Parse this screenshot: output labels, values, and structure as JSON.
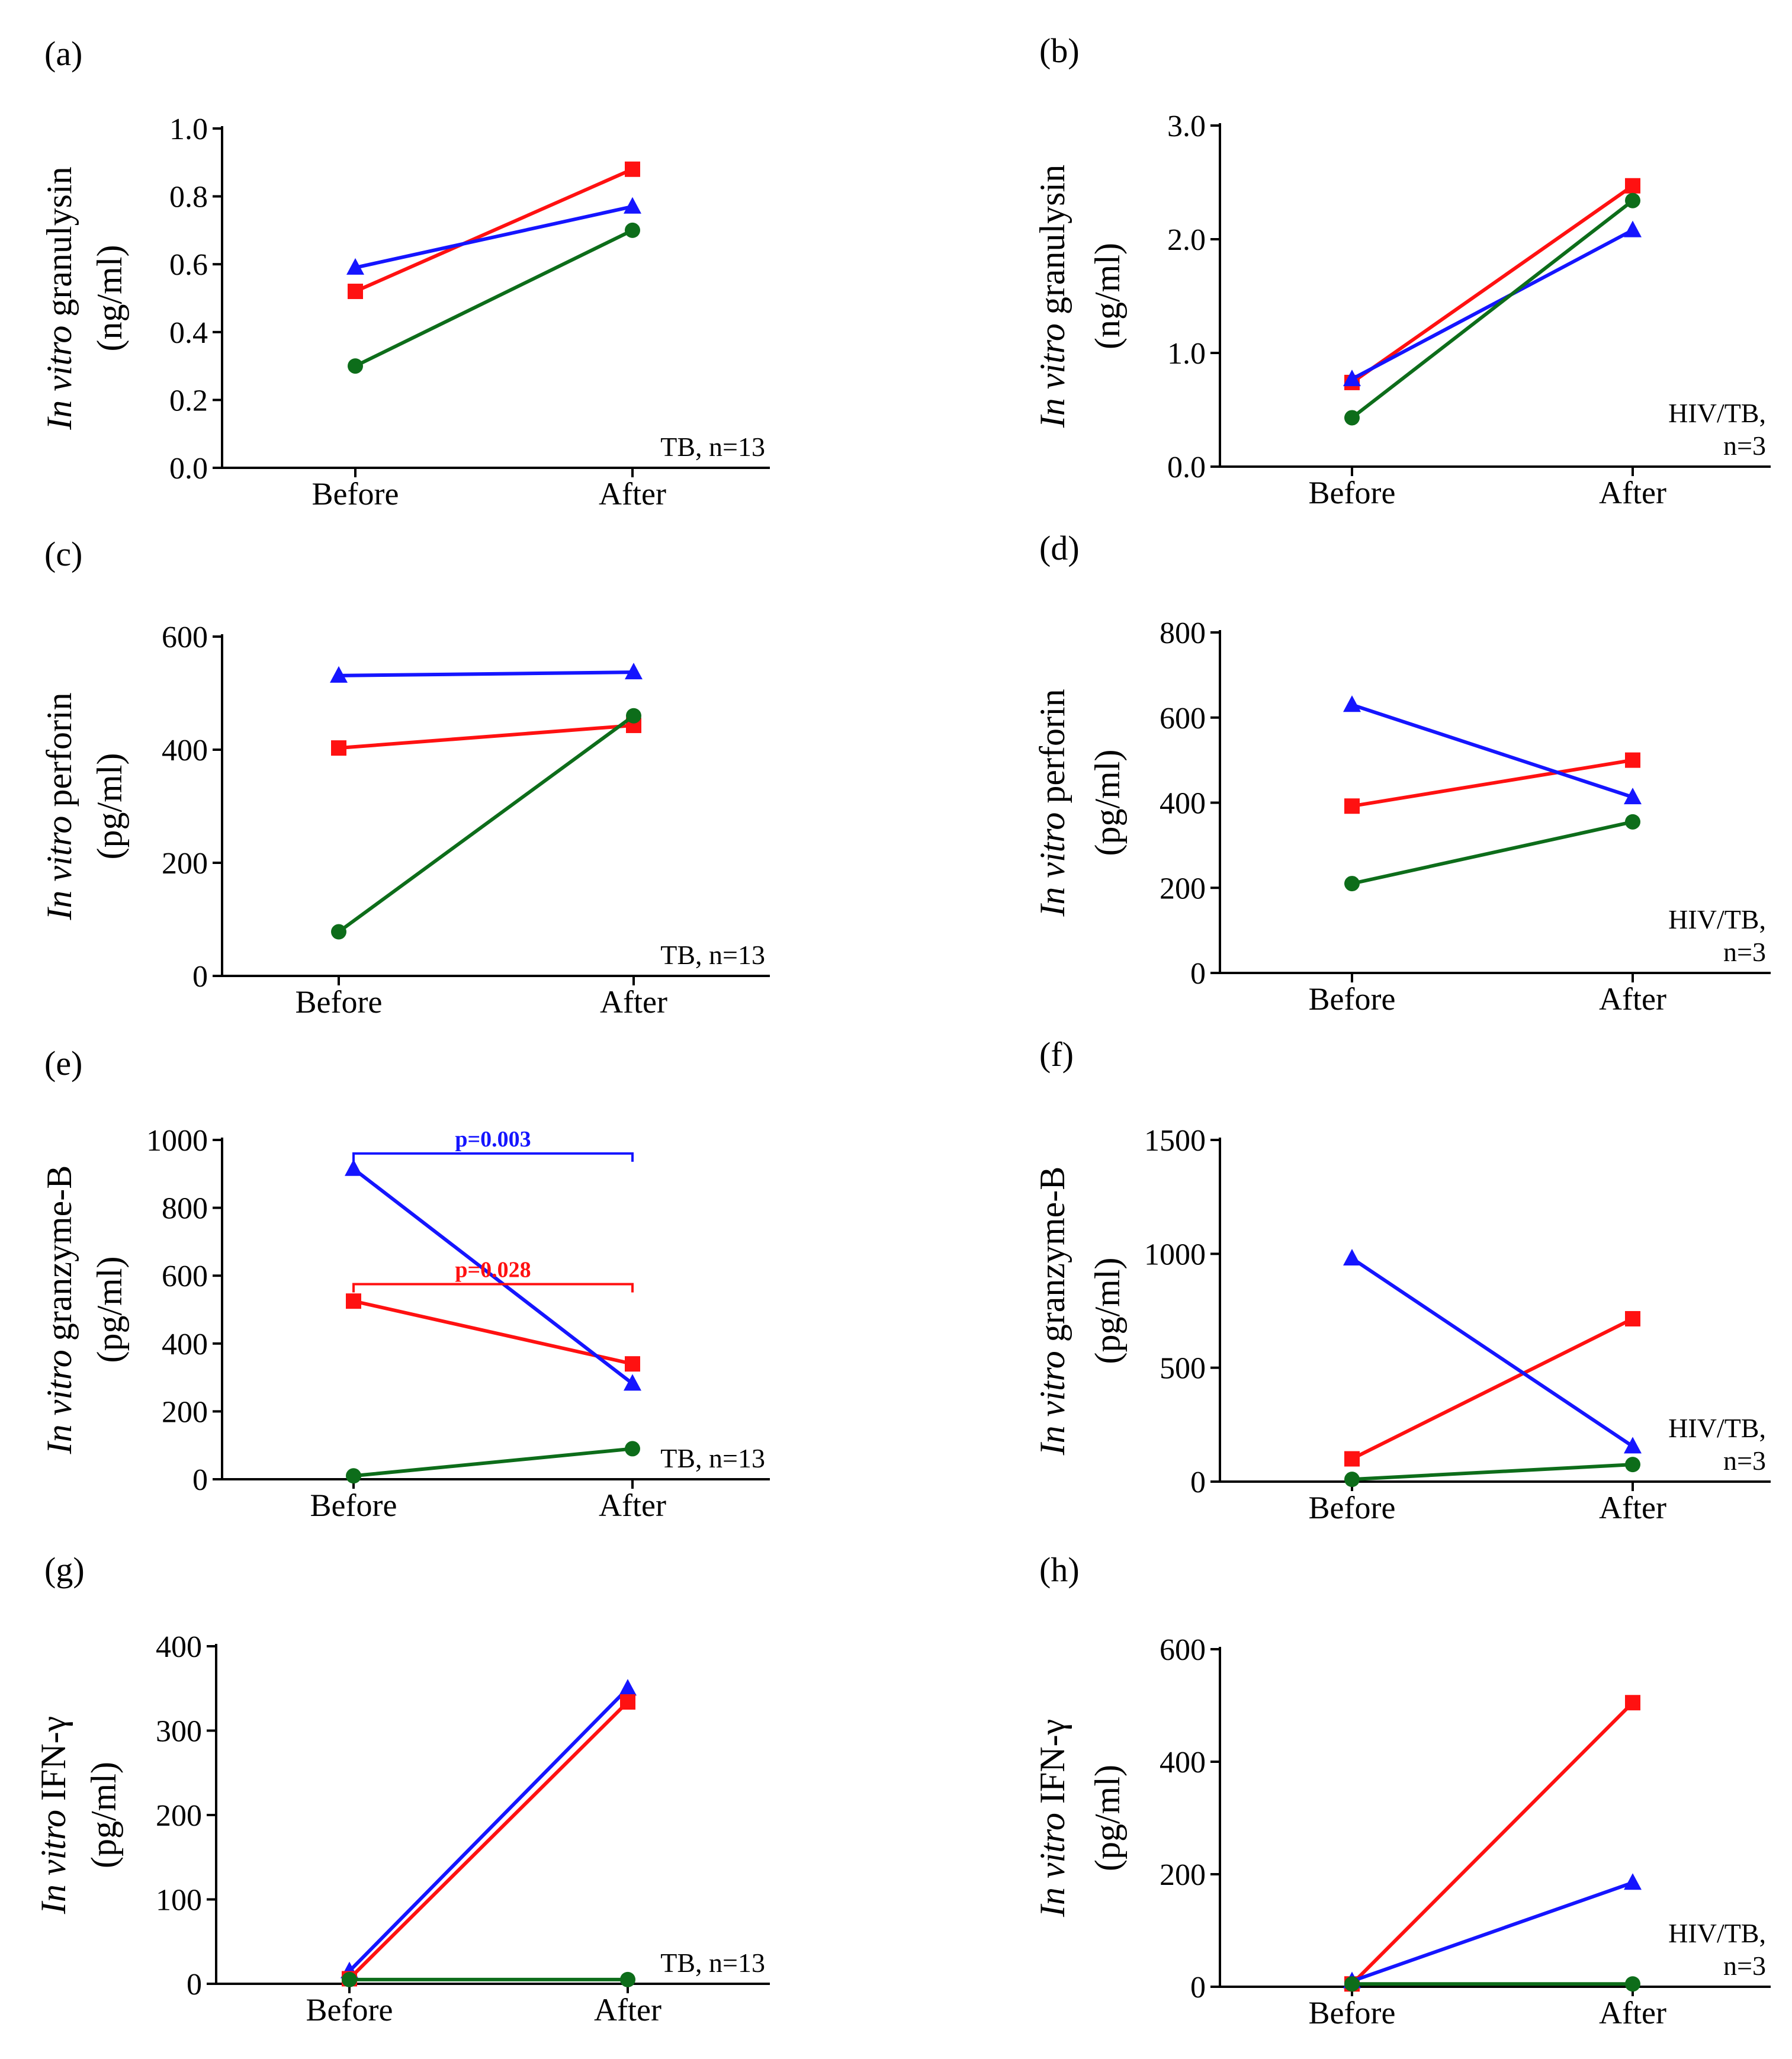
{
  "colors": {
    "red": "#ff1111",
    "blue": "#1515ff",
    "green": "#0d6d1a",
    "axis": "#000000"
  },
  "chart_data": [
    {
      "panel": "(a)",
      "type": "line",
      "ylabel_italic": "In vitro",
      "ylabel_rest": "granulysin",
      "yunit": "(ng/ml)",
      "group_lines": [
        "TB, n=13"
      ],
      "categories": [
        "Before",
        "After"
      ],
      "yticks": [
        0,
        0.2,
        0.4,
        0.6,
        0.8,
        1.0
      ],
      "yticklabels": [
        "0.0",
        "0.2",
        "0.4",
        "0.6",
        "0.8",
        "1.0"
      ],
      "ylim": [
        0,
        1.0
      ],
      "series": [
        {
          "color": "red",
          "marker": "square",
          "values": [
            0.52,
            0.88
          ]
        },
        {
          "color": "blue",
          "marker": "triangle",
          "values": [
            0.59,
            0.77
          ]
        },
        {
          "color": "green",
          "marker": "circle",
          "values": [
            0.3,
            0.7
          ]
        }
      ],
      "brackets": []
    },
    {
      "panel": "(b)",
      "type": "line",
      "ylabel_italic": "In vitro",
      "ylabel_rest": "granulysin",
      "yunit": "(ng/ml)",
      "group_lines": [
        "HIV/TB,",
        "n=3"
      ],
      "categories": [
        "Before",
        "After"
      ],
      "yticks": [
        0,
        1,
        2,
        3
      ],
      "yticklabels": [
        "0.0",
        "1.0",
        "2.0",
        "3.0"
      ],
      "ylim": [
        0,
        3.0
      ],
      "series": [
        {
          "color": "red",
          "marker": "square",
          "values": [
            0.74,
            2.47
          ]
        },
        {
          "color": "blue",
          "marker": "triangle",
          "values": [
            0.77,
            2.08
          ]
        },
        {
          "color": "green",
          "marker": "circle",
          "values": [
            0.43,
            2.34
          ]
        }
      ],
      "brackets": []
    },
    {
      "panel": "(c)",
      "type": "line",
      "ylabel_italic": "In vitro",
      "ylabel_rest": "perforin",
      "yunit": "(pg/ml)",
      "group_lines": [
        "TB, n=13"
      ],
      "categories": [
        "Before",
        "After"
      ],
      "yticks": [
        0,
        200,
        400,
        600
      ],
      "yticklabels": [
        "0",
        "200",
        "400",
        "600"
      ],
      "ylim": [
        0,
        600
      ],
      "series": [
        {
          "color": "red",
          "marker": "square",
          "values": [
            403,
            443
          ]
        },
        {
          "color": "blue",
          "marker": "triangle",
          "values": [
            531,
            537
          ]
        },
        {
          "color": "green",
          "marker": "circle",
          "values": [
            78,
            460
          ]
        }
      ],
      "brackets": []
    },
    {
      "panel": "(d)",
      "type": "line",
      "ylabel_italic": "In vitro",
      "ylabel_rest": "perforin",
      "yunit": "(pg/ml)",
      "group_lines": [
        "HIV/TB,",
        "n=3"
      ],
      "categories": [
        "Before",
        "After"
      ],
      "yticks": [
        0,
        200,
        400,
        600,
        800
      ],
      "yticklabels": [
        "0",
        "200",
        "400",
        "600",
        "800"
      ],
      "ylim": [
        0,
        800
      ],
      "series": [
        {
          "color": "red",
          "marker": "square",
          "values": [
            392,
            500
          ]
        },
        {
          "color": "blue",
          "marker": "triangle",
          "values": [
            630,
            413
          ]
        },
        {
          "color": "green",
          "marker": "circle",
          "values": [
            210,
            355
          ]
        }
      ],
      "brackets": []
    },
    {
      "panel": "(e)",
      "type": "line",
      "ylabel_italic": "In vitro",
      "ylabel_rest": "granzyme-B",
      "yunit": "(pg/ml)",
      "group_lines": [
        "TB, n=13"
      ],
      "categories": [
        "Before",
        "After"
      ],
      "yticks": [
        0,
        200,
        400,
        600,
        800,
        1000
      ],
      "yticklabels": [
        "0",
        "200",
        "400",
        "600",
        "800",
        "1000"
      ],
      "ylim": [
        0,
        1000
      ],
      "series": [
        {
          "color": "red",
          "marker": "square",
          "values": [
            525,
            340
          ]
        },
        {
          "color": "blue",
          "marker": "triangle",
          "values": [
            915,
            282
          ]
        },
        {
          "color": "green",
          "marker": "circle",
          "values": [
            10,
            90
          ]
        }
      ],
      "brackets": [
        {
          "color": "blue",
          "label": "p=0.003",
          "y": 960
        },
        {
          "color": "red",
          "label": "p=0.028",
          "y": 575
        }
      ]
    },
    {
      "panel": "(f)",
      "type": "line",
      "ylabel_italic": "In vitro",
      "ylabel_rest": "granzyme-B",
      "yunit": "(pg/ml)",
      "group_lines": [
        "HIV/TB,",
        "n=3"
      ],
      "categories": [
        "Before",
        "After"
      ],
      "yticks": [
        0,
        500,
        1000,
        1500
      ],
      "yticklabels": [
        "0",
        "500",
        "1000",
        "1500"
      ],
      "ylim": [
        0,
        1500
      ],
      "series": [
        {
          "color": "red",
          "marker": "square",
          "values": [
            100,
            715
          ]
        },
        {
          "color": "blue",
          "marker": "triangle",
          "values": [
            980,
            155
          ]
        },
        {
          "color": "green",
          "marker": "circle",
          "values": [
            10,
            75
          ]
        }
      ],
      "brackets": []
    },
    {
      "panel": "(g)",
      "type": "line",
      "ylabel_italic": "In vitro",
      "ylabel_rest": "IFN-γ",
      "yunit": "(pg/ml)",
      "group_lines": [
        "TB, n=13"
      ],
      "categories": [
        "Before",
        "After"
      ],
      "yticks": [
        0,
        100,
        200,
        300,
        400
      ],
      "yticklabels": [
        "0",
        "100",
        "200",
        "300",
        "400"
      ],
      "ylim": [
        0,
        400
      ],
      "series": [
        {
          "color": "blue",
          "marker": "triangle",
          "values": [
            15,
            350
          ]
        },
        {
          "color": "red",
          "marker": "square",
          "values": [
            6,
            334
          ]
        },
        {
          "color": "green",
          "marker": "circle",
          "values": [
            5,
            5
          ]
        }
      ],
      "brackets": []
    },
    {
      "panel": "(h)",
      "type": "line",
      "ylabel_italic": "In vitro",
      "ylabel_rest": "IFN-γ",
      "yunit": "(pg/ml)",
      "group_lines": [
        "HIV/TB,",
        "n=3"
      ],
      "categories": [
        "Before",
        "After"
      ],
      "yticks": [
        0,
        200,
        400,
        600
      ],
      "yticklabels": [
        "0",
        "200",
        "400",
        "600"
      ],
      "ylim": [
        0,
        600
      ],
      "series": [
        {
          "color": "red",
          "marker": "square",
          "values": [
            5,
            505
          ]
        },
        {
          "color": "blue",
          "marker": "triangle",
          "values": [
            10,
            185
          ]
        },
        {
          "color": "green",
          "marker": "circle",
          "values": [
            5,
            5
          ]
        }
      ],
      "brackets": []
    }
  ]
}
